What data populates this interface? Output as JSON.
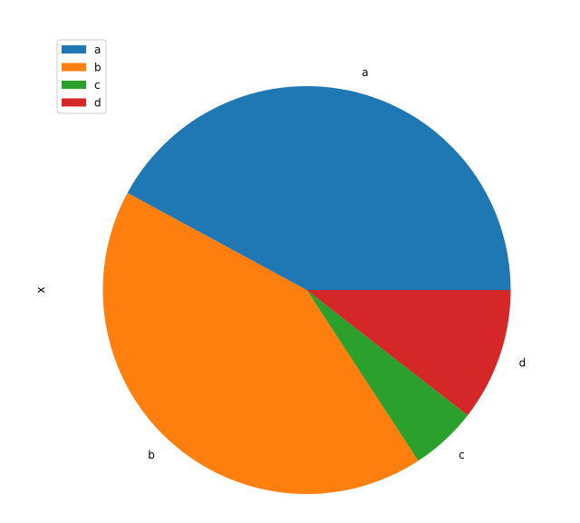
{
  "chart_data": {
    "type": "pie",
    "categories": [
      "a",
      "b",
      "c",
      "d"
    ],
    "values": [
      8,
      8,
      1,
      2
    ],
    "colors": [
      "#1f77b4",
      "#ff7f0e",
      "#2ca02c",
      "#d62728"
    ],
    "ylabel": "x",
    "start_angle_deg": 0,
    "direction": "counterclockwise",
    "legend": {
      "placement": "top-left",
      "entries": [
        "a",
        "b",
        "c",
        "d"
      ]
    }
  }
}
